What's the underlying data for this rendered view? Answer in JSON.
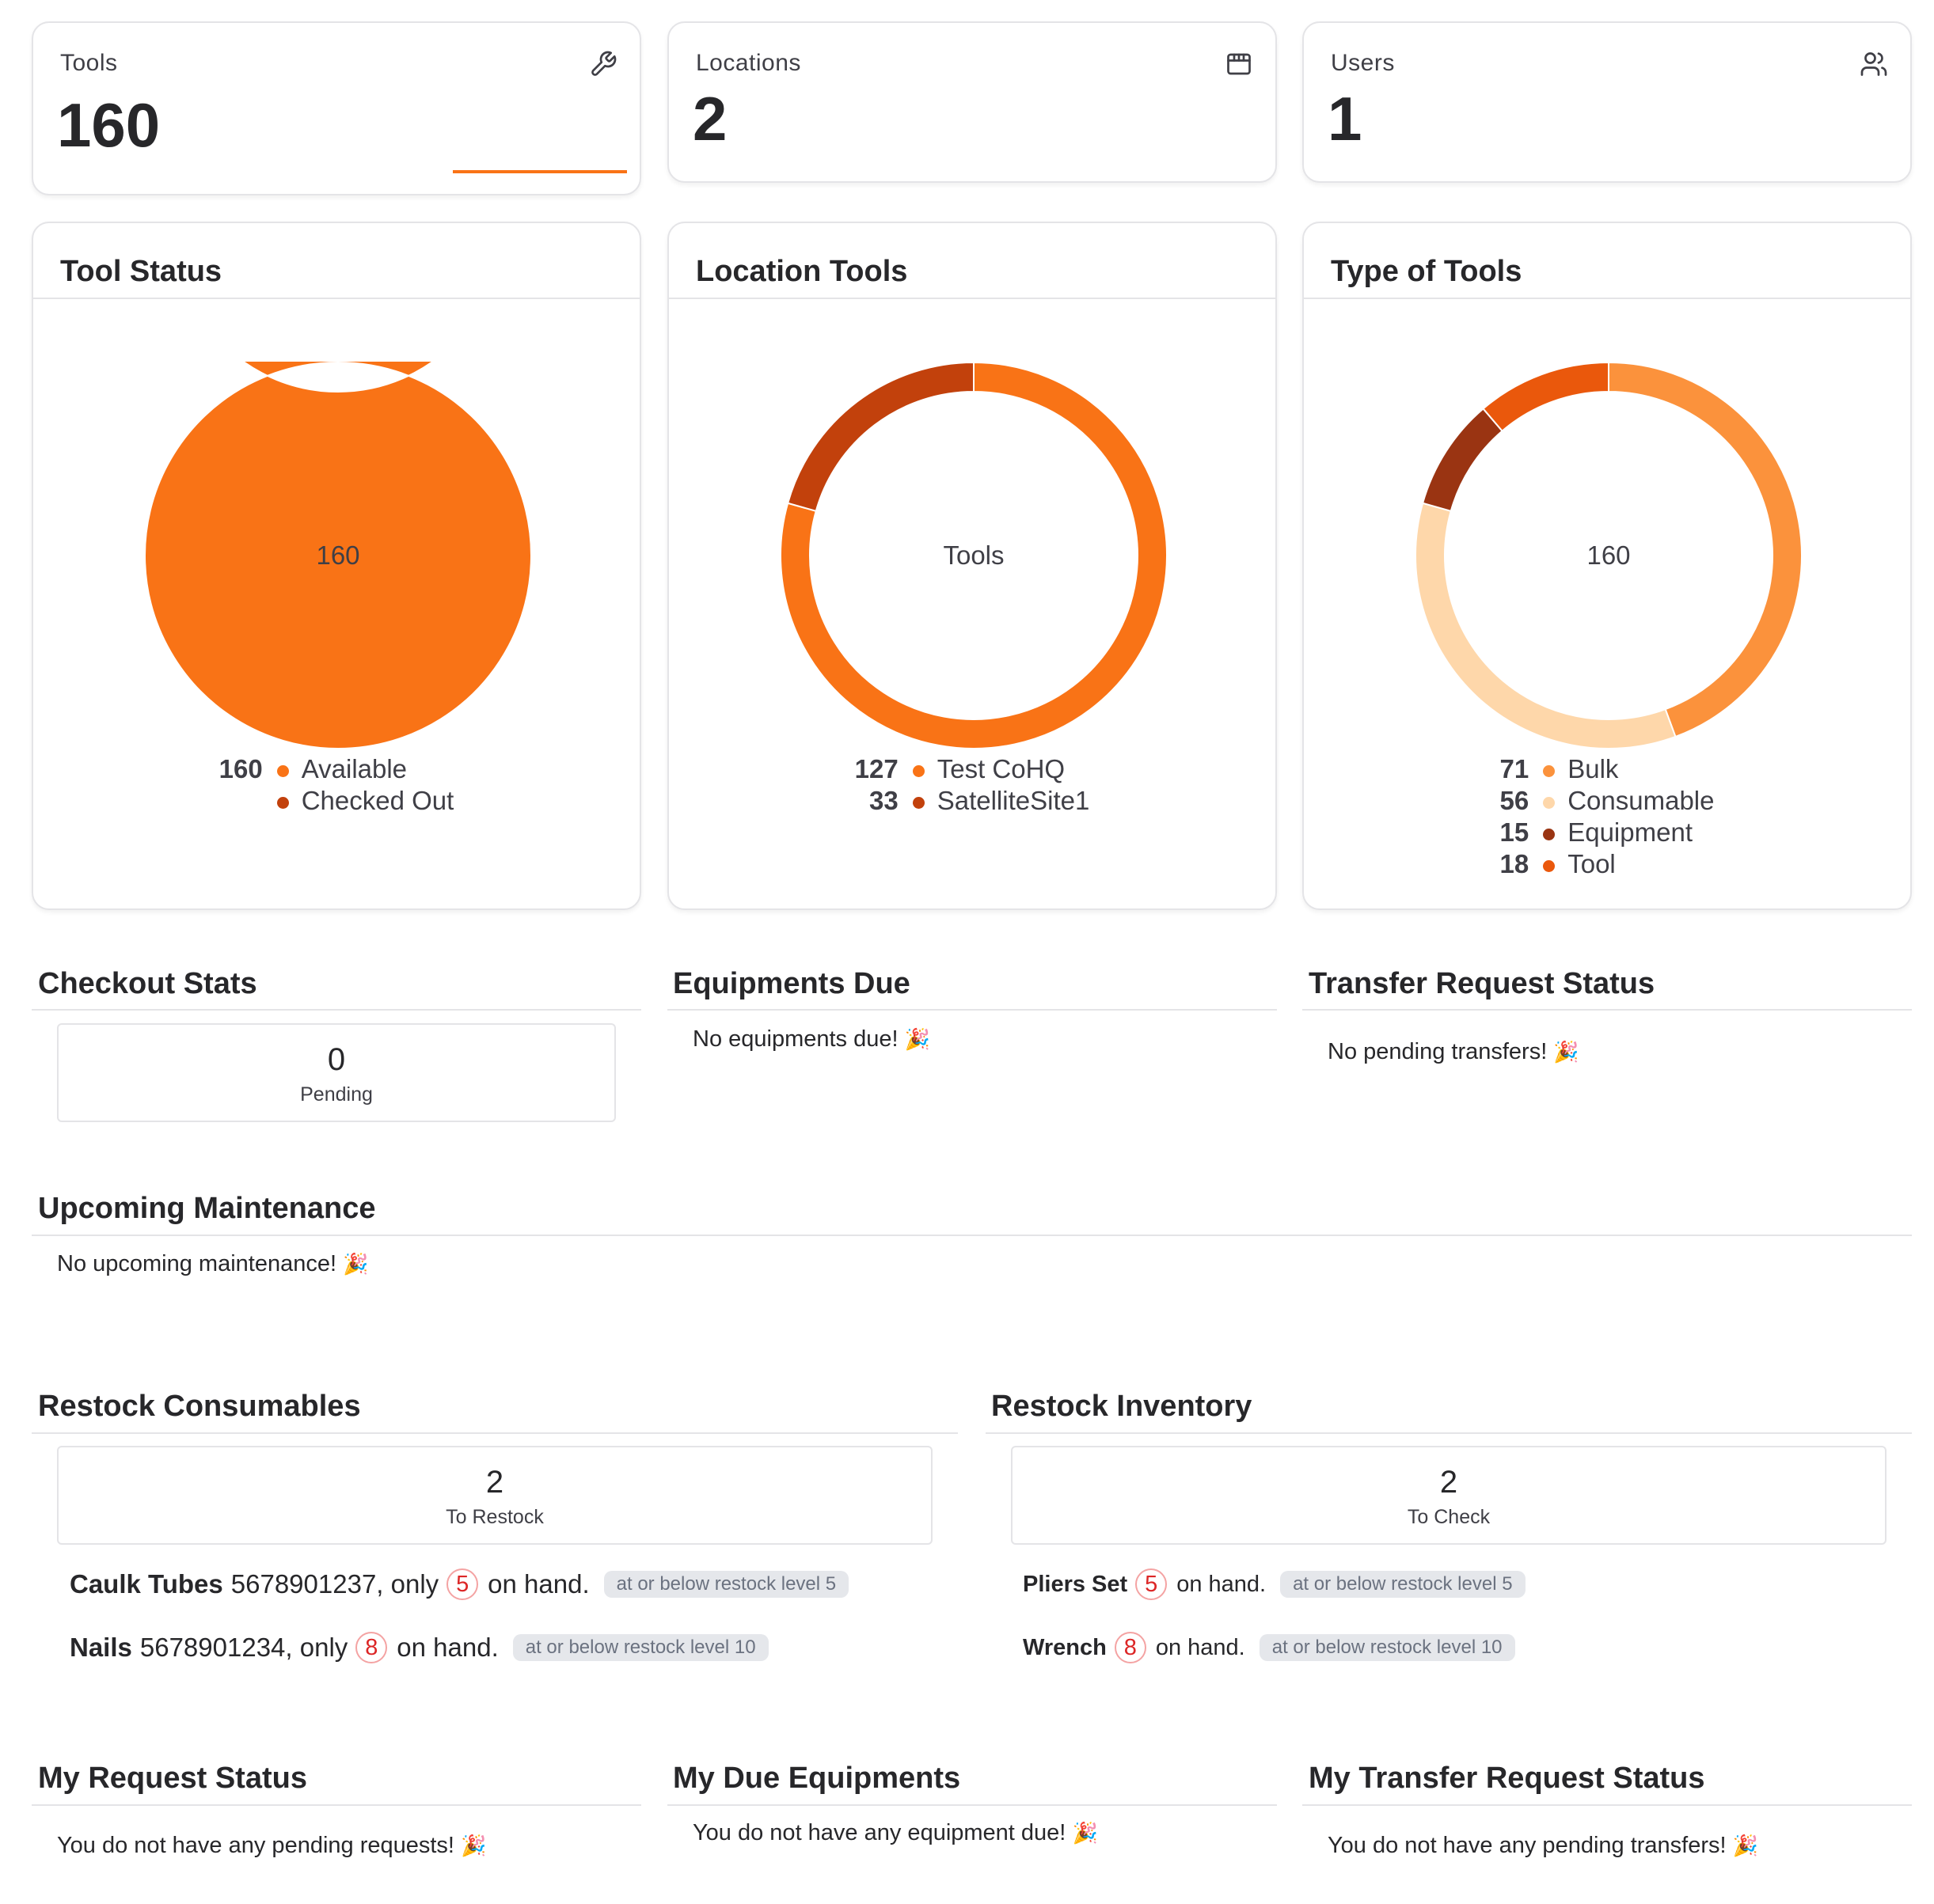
{
  "stats": [
    {
      "label": "Tools",
      "value": "160",
      "icon": "wrench-icon"
    },
    {
      "label": "Locations",
      "value": "2",
      "icon": "store-icon"
    },
    {
      "label": "Users",
      "value": "1",
      "icon": "users-icon"
    }
  ],
  "colors": {
    "accent": "#f97316",
    "dark": "#c2410c"
  },
  "chart_data": [
    {
      "type": "pie",
      "title": "Tool Status",
      "center_label": "160",
      "series": [
        {
          "name": "Available",
          "value": 160,
          "color": "#f97316"
        },
        {
          "name": "Checked Out",
          "value": 0,
          "color": "#c2410c"
        }
      ]
    },
    {
      "type": "pie",
      "title": "Location Tools",
      "center_label": "Tools",
      "series": [
        {
          "name": "Test CoHQ",
          "value": 127,
          "color": "#f97316"
        },
        {
          "name": "SatelliteSite1",
          "value": 33,
          "color": "#c2410c"
        }
      ]
    },
    {
      "type": "pie",
      "title": "Type of Tools",
      "center_label": "160",
      "series": [
        {
          "name": "Bulk",
          "value": 71,
          "color": "#fb923c"
        },
        {
          "name": "Consumable",
          "value": 56,
          "color": "#fed7aa"
        },
        {
          "name": "Equipment",
          "value": 15,
          "color": "#9a3412"
        },
        {
          "name": "Tool",
          "value": 18,
          "color": "#ea580c"
        }
      ]
    }
  ],
  "checkout": {
    "title": "Checkout Stats",
    "value": "0",
    "label": "Pending"
  },
  "equip_due": {
    "title": "Equipments Due",
    "message": "No equipments due!"
  },
  "transfer": {
    "title": "Transfer Request Status",
    "message": "No pending transfers!"
  },
  "maintenance": {
    "title": "Upcoming Maintenance",
    "message": "No upcoming maintenance!"
  },
  "restock_consumables": {
    "title": "Restock Consumables",
    "value": "2",
    "label": "To Restock",
    "items": [
      {
        "name": "Caulk Tubes",
        "code": "5678901237, only",
        "qty": "5",
        "suffix": "on hand.",
        "badge": "at or below restock level 5"
      },
      {
        "name": "Nails",
        "code": "5678901234, only",
        "qty": "8",
        "suffix": "on hand.",
        "badge": "at or below restock level 10"
      }
    ]
  },
  "restock_inventory": {
    "title": "Restock Inventory",
    "value": "2",
    "label": "To Check",
    "items": [
      {
        "name": "Pliers Set",
        "qty": "5",
        "suffix": "on hand.",
        "badge": "at or below restock level 5"
      },
      {
        "name": "Wrench",
        "qty": "8",
        "suffix": "on hand.",
        "badge": "at or below restock level 10"
      }
    ]
  },
  "my_requests": {
    "title": "My Request Status",
    "message": "You do not have any pending requests!"
  },
  "my_due": {
    "title": "My Due Equipments",
    "message": "You do not have any equipment due!"
  },
  "my_transfer": {
    "title": "My Transfer Request Status",
    "message": "You do not have any pending transfers!"
  },
  "emoji": {
    "party": "🎉"
  }
}
